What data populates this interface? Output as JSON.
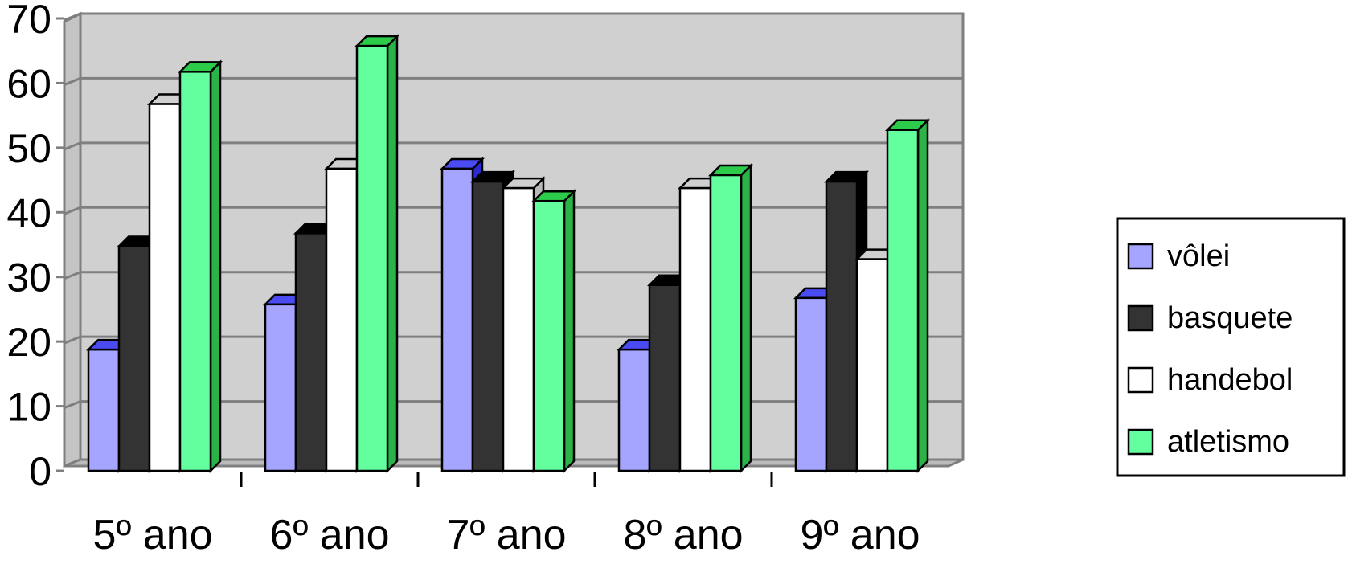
{
  "chart_data": {
    "type": "bar",
    "categories": [
      "5º ano",
      "6º ano",
      "7º ano",
      "8º ano",
      "9º ano"
    ],
    "series": [
      {
        "name": "vôlei",
        "values": [
          19,
          26,
          47,
          19,
          27
        ]
      },
      {
        "name": "basquete",
        "values": [
          35,
          37,
          45,
          29,
          45
        ]
      },
      {
        "name": "handebol",
        "values": [
          57,
          47,
          44,
          44,
          33
        ]
      },
      {
        "name": "atletismo",
        "values": [
          62,
          66,
          42,
          46,
          53
        ]
      }
    ],
    "title": "",
    "xlabel": "",
    "ylabel": "",
    "ylim": [
      0,
      70
    ],
    "yticks": [
      "0",
      "10",
      "20",
      "30",
      "40",
      "50",
      "60",
      "70"
    ],
    "grid": true,
    "legend_position": "right",
    "colors": {
      "vôlei": {
        "face": "#a5a5ff",
        "top": "#4b4bf2",
        "side": "#2a2ad0"
      },
      "basquete": {
        "face": "#333333",
        "top": "#000000",
        "side": "#000000"
      },
      "handebol": {
        "face": "#ffffff",
        "top": "#d0d0d0",
        "side": "#b8b8b8"
      },
      "atletismo": {
        "face": "#63ff9f",
        "top": "#2ccb4a",
        "side": "#2ab346"
      },
      "plot_background": "#d0d0d0",
      "gridline": "#7f7f7f"
    }
  }
}
